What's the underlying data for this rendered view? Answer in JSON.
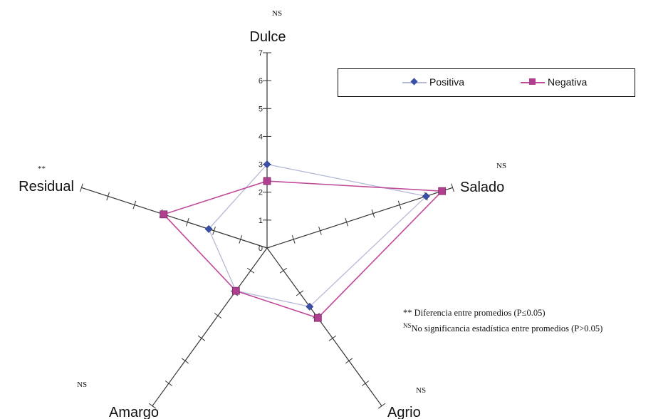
{
  "chart_data": {
    "type": "radar",
    "axes": [
      {
        "name": "Dulce",
        "marker": "NS"
      },
      {
        "name": "Salado",
        "marker": "NS"
      },
      {
        "name": "Agrio",
        "marker": "NS"
      },
      {
        "name": "Amargo",
        "marker": "NS"
      },
      {
        "name": "Residual",
        "marker": "**"
      }
    ],
    "rmin": 0,
    "rmax": 7,
    "ticks": [
      "0",
      "1",
      "2",
      "3",
      "4",
      "5",
      "6",
      "7"
    ],
    "series": [
      {
        "name": "Positiva",
        "color": "#3a4fa8",
        "line_color": "#b4b9d6",
        "marker": "diamond",
        "values": [
          3.0,
          6.0,
          2.6,
          1.9,
          2.2
        ]
      },
      {
        "name": "Negativa",
        "color": "#b0408f",
        "line_color": "#c24a9a",
        "marker": "square",
        "values": [
          2.4,
          6.6,
          3.1,
          1.9,
          3.9
        ]
      }
    ],
    "legend": "top-right",
    "grid": false
  },
  "notes": {
    "line1": "** Diferencia entre promedios (P≤0.05)",
    "line2_sup": "NS",
    "line2": "No significancia  estadística entre promedios (P>0.05)"
  }
}
